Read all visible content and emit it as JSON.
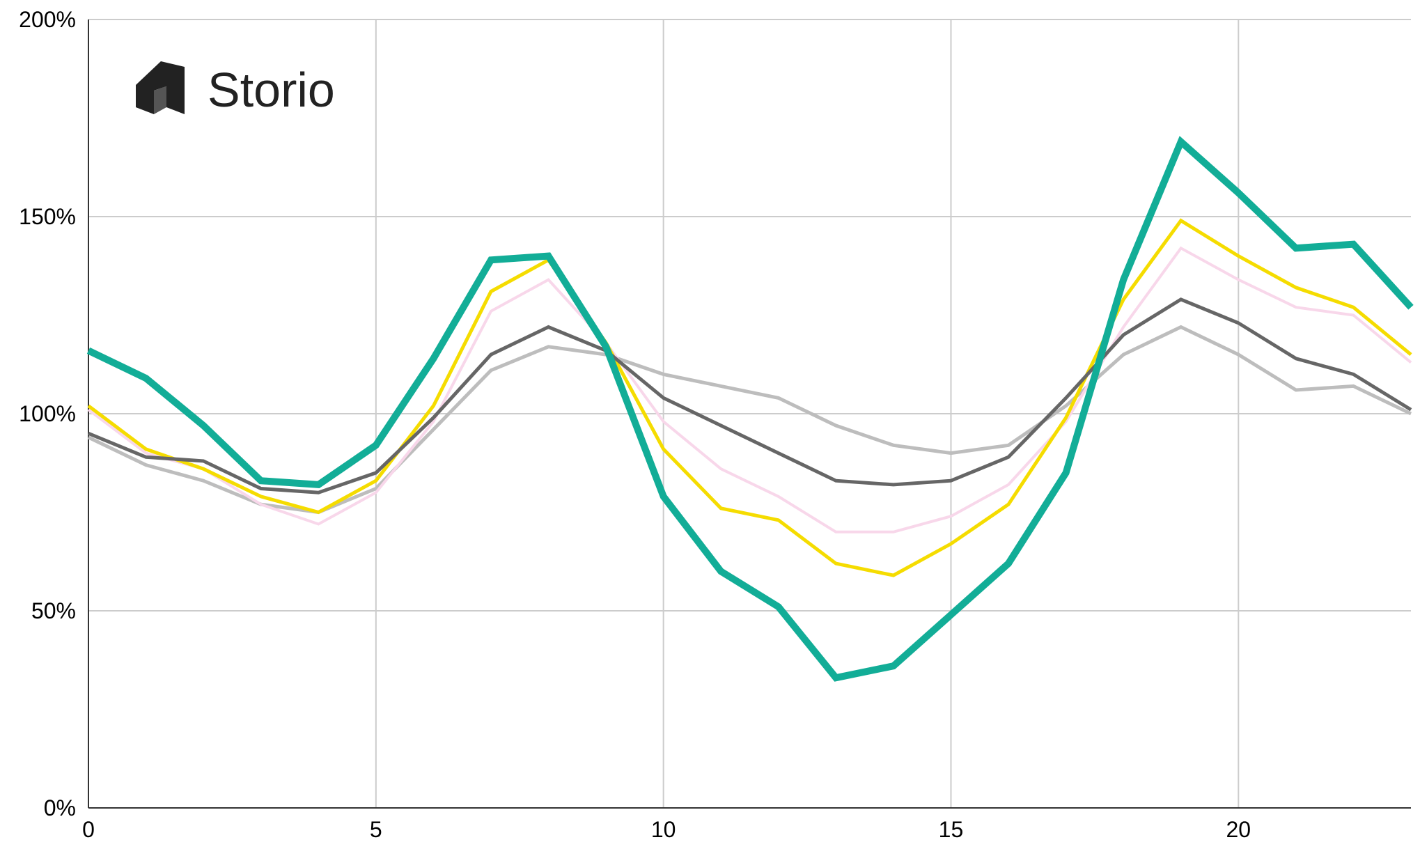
{
  "brand": {
    "name": "Storio",
    "icon": "storio-logo-icon",
    "color": "#222222"
  },
  "chart_data": {
    "type": "line",
    "title": "",
    "xlabel": "",
    "ylabel": "",
    "xlim": [
      0,
      23
    ],
    "ylim": [
      0,
      200
    ],
    "x_ticks": [
      0,
      5,
      10,
      15,
      20
    ],
    "x_tick_labels": [
      "0",
      "5",
      "10",
      "15",
      "20"
    ],
    "y_ticks": [
      0,
      50,
      100,
      150,
      200
    ],
    "y_tick_labels": [
      "0%",
      "50%",
      "100%",
      "150%",
      "200%"
    ],
    "grid": true,
    "legend": "none",
    "x": [
      0,
      1,
      2,
      3,
      4,
      5,
      6,
      7,
      8,
      9,
      10,
      11,
      12,
      13,
      14,
      15,
      16,
      17,
      18,
      19,
      20,
      21,
      22,
      23
    ],
    "series": [
      {
        "color": "#bdbdbd",
        "width": 5,
        "values": [
          94,
          87,
          83,
          77,
          75,
          81,
          96,
          111,
          117,
          115,
          110,
          107,
          104,
          97,
          92,
          90,
          92,
          102,
          115,
          122,
          115,
          106,
          107,
          100
        ]
      },
      {
        "color": "#f8d7ea",
        "width": 4,
        "values": [
          101,
          90,
          86,
          77,
          72,
          80,
          98,
          126,
          134,
          118,
          98,
          86,
          79,
          70,
          70,
          74,
          82,
          98,
          122,
          142,
          134,
          127,
          125,
          113
        ]
      },
      {
        "color": "#f5dc00",
        "width": 5,
        "values": [
          102,
          91,
          86,
          79,
          75,
          83,
          102,
          131,
          139,
          118,
          91,
          76,
          73,
          62,
          59,
          67,
          77,
          99,
          129,
          149,
          140,
          132,
          127,
          115
        ]
      },
      {
        "color": "#666666",
        "width": 5,
        "values": [
          95,
          89,
          88,
          81,
          80,
          85,
          99,
          115,
          122,
          116,
          104,
          97,
          90,
          83,
          82,
          83,
          89,
          104,
          120,
          129,
          123,
          114,
          110,
          101
        ]
      },
      {
        "color": "#12ad97",
        "width": 10,
        "values": [
          116,
          109,
          97,
          83,
          82,
          92,
          114,
          139,
          140,
          117,
          79,
          60,
          51,
          33,
          36,
          49,
          62,
          85,
          134,
          169,
          156,
          142,
          143,
          127
        ]
      }
    ]
  }
}
